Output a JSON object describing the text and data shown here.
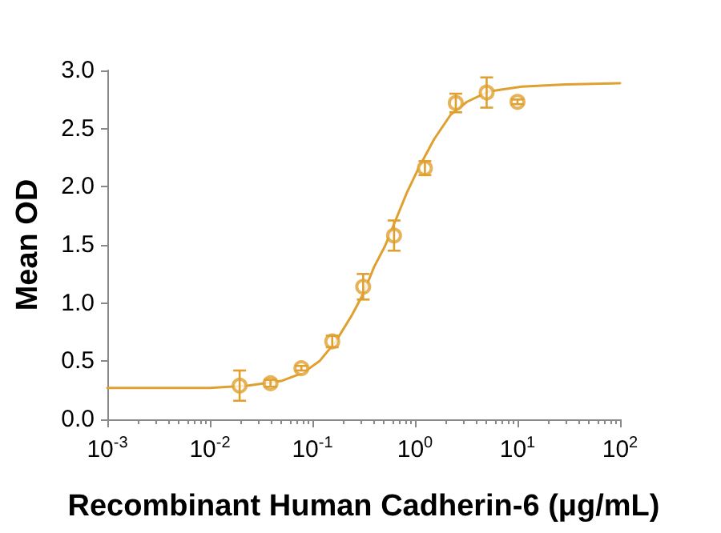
{
  "chart_data": {
    "type": "scatter",
    "xlabel": "Recombinant Human Cadherin-6 (μg/mL)",
    "ylabel": "Mean OD",
    "log": "x",
    "grid": false,
    "xlim": [
      0.001,
      100
    ],
    "xticks": [
      {
        "value": 0.001,
        "label": "10$^{-3}$"
      },
      {
        "value": 0.01,
        "label": "10$^{-2}$"
      },
      {
        "value": 0.1,
        "label": "10$^{-1}$"
      },
      {
        "value": 1,
        "label": "10$^{0}$"
      },
      {
        "value": 10,
        "label": "10$^{1}$"
      },
      {
        "value": 100,
        "label": "10$^{2}$"
      }
    ],
    "ylim": [
      0,
      3
    ],
    "yticks": [
      {
        "value": 0,
        "label": "0.0"
      },
      {
        "value": 0.5,
        "label": "0.5"
      },
      {
        "value": 1,
        "label": "1.0"
      },
      {
        "value": 1.5,
        "label": "1.5"
      },
      {
        "value": 2,
        "label": "2.0"
      },
      {
        "value": 2.5,
        "label": "2.5"
      },
      {
        "value": 3,
        "label": "3.0"
      }
    ],
    "series": [
      {
        "marker": "circle",
        "color": "#e0a030",
        "x": [
          0.0195,
          0.039,
          0.078,
          0.156,
          0.3125,
          0.625,
          1.25,
          2.5,
          5,
          10
        ],
        "values": [
          0.29,
          0.31,
          0.44,
          0.67,
          1.14,
          1.58,
          2.16,
          2.72,
          2.81,
          2.73
        ],
        "errors": [
          0.13,
          0.03,
          0.02,
          0.05,
          0.11,
          0.13,
          0.06,
          0.08,
          0.13,
          0.02
        ]
      },
      {
        "type": "line",
        "marker": "none",
        "line_style": "solid",
        "color": "#e0a030",
        "x": [
          0.001,
          0.01,
          0.0237,
          0.0496,
          0.081,
          0.117,
          0.169,
          0.244,
          0.313,
          0.399,
          0.51,
          0.653,
          0.834,
          1.07,
          1.54,
          2.23,
          3.21,
          5.26,
          10.97,
          29.3,
          100
        ],
        "values": [
          0.27,
          0.27,
          0.29,
          0.33,
          0.4,
          0.5,
          0.67,
          0.9,
          1.08,
          1.31,
          1.49,
          1.72,
          1.95,
          2.15,
          2.41,
          2.62,
          2.73,
          2.82,
          2.86,
          2.88,
          2.89
        ]
      }
    ]
  }
}
